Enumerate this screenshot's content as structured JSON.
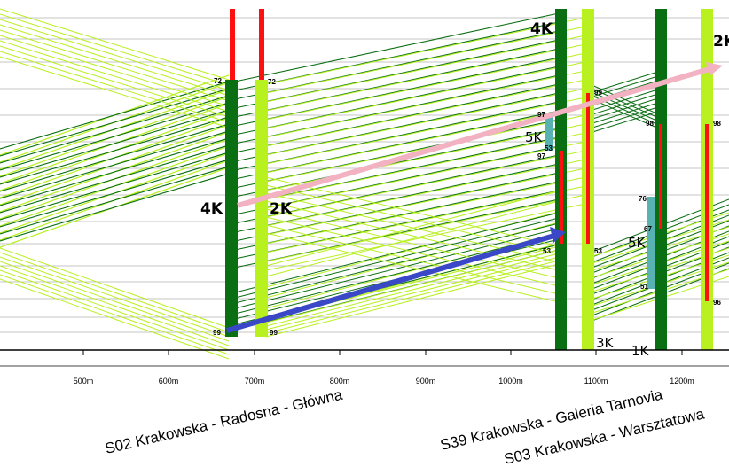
{
  "axis": {
    "ticks": [
      "500m",
      "600m",
      "700m",
      "800m",
      "900m",
      "1000m",
      "1100m",
      "1200m"
    ]
  },
  "stops": [
    {
      "name": "S02 Krakowska - Radosna - Główna"
    },
    {
      "name": "S39 Krakowska - Galeria Tarnovia"
    },
    {
      "name": "S03 Krakowska - Warsztatowa"
    }
  ],
  "track_labels": [
    "4K",
    "2K",
    "4K",
    "2K",
    "5K",
    "5K",
    "3K",
    "1K"
  ],
  "time_labels": [
    "72",
    "72",
    "99",
    "99",
    "99",
    "97",
    "53",
    "97",
    "53",
    "53",
    "98",
    "98",
    "76",
    "67",
    "51",
    "96"
  ],
  "colors": {
    "dark_green": "#0a6e12",
    "light_green": "#b8f020",
    "red": "#ff1010",
    "teal": "#58b2b2",
    "pink": "#f2b2c2",
    "blue": "#3a48c8"
  }
}
